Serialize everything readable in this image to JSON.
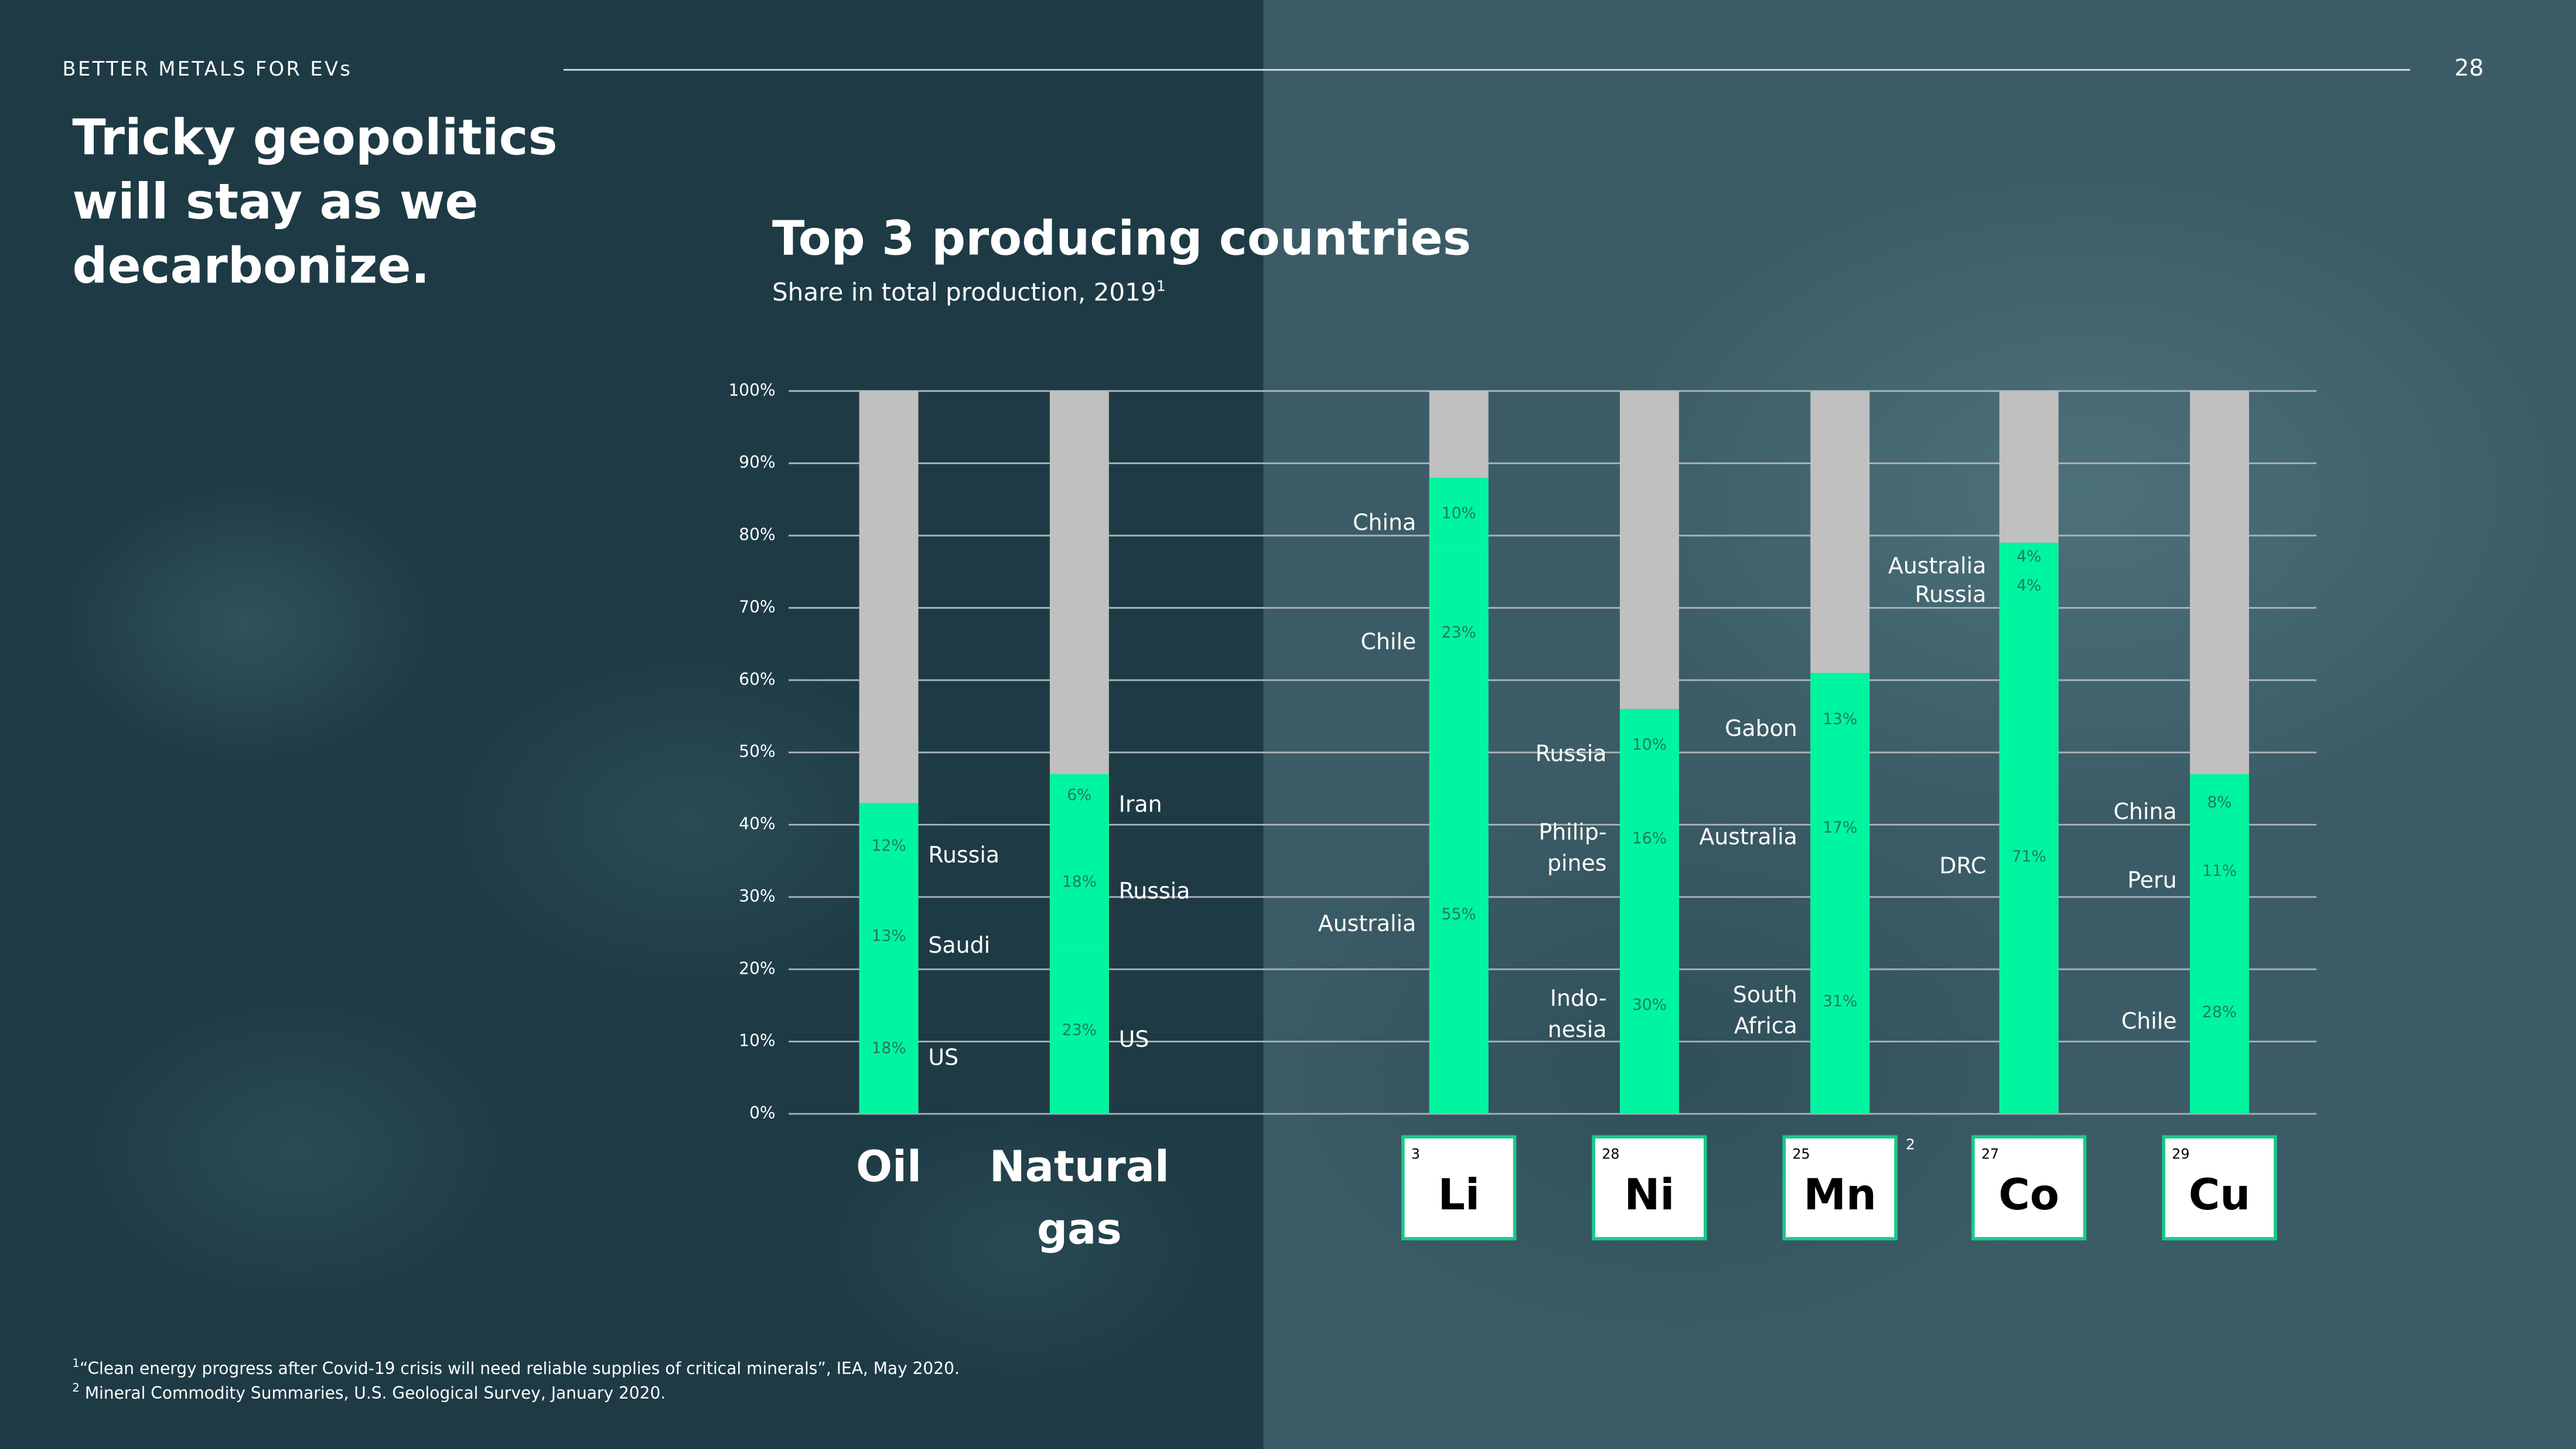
{
  "slide": {
    "section": "BETTER METALS FOR EVs",
    "page": "28",
    "headline": [
      "Tricky geopolitics",
      "will stay as we",
      "decarbonize."
    ],
    "footnotes": [
      {
        "marker": "1",
        "text": "“Clean energy progress after Covid-19 crisis will need reliable supplies of critical minerals”, IEA, May 2020."
      },
      {
        "marker": "2",
        "text": "Mineral Commodity Summaries, U.S. Geological Survey, January 2020."
      }
    ]
  },
  "chart_data": {
    "type": "stacked_bar",
    "title": "Top 3 producing countries",
    "subtitle": "Share in total production, 2019",
    "subtitle_note": "1",
    "color": "#00f5a0",
    "track_color": "#c0c0c0",
    "ylim": [
      0,
      100
    ],
    "yticks": [
      {
        "value": 0,
        "label": "0%"
      },
      {
        "value": 10,
        "label": "10%"
      },
      {
        "value": 20,
        "label": "20%"
      },
      {
        "value": 30,
        "label": "30%"
      },
      {
        "value": 40,
        "label": "40%"
      },
      {
        "value": 50,
        "label": "50%"
      },
      {
        "value": 60,
        "label": "60%"
      },
      {
        "value": 70,
        "label": "70%"
      },
      {
        "value": 80,
        "label": "80%"
      },
      {
        "value": 90,
        "label": "90%"
      },
      {
        "value": 100,
        "label": "100%"
      }
    ],
    "grid": true,
    "categories": [
      "Oil",
      "Natural gas",
      "Li",
      "Ni",
      "Mn",
      "Co",
      "Cu"
    ],
    "element_numbers": [
      null,
      null,
      3,
      28,
      25,
      27,
      29
    ],
    "category_notes": [
      null,
      null,
      null,
      null,
      "2",
      null,
      null
    ],
    "stacks": [
      {
        "values": [
          18,
          13,
          12
        ],
        "value_labels": [
          "18%",
          "13%",
          "12%"
        ],
        "countries": [
          [
            "US"
          ],
          [
            "Saudi"
          ],
          [
            "Russia"
          ]
        ]
      },
      {
        "values": [
          23,
          18,
          6
        ],
        "value_labels": [
          "23%",
          "18%",
          "6%"
        ],
        "countries": [
          [
            "US"
          ],
          [
            "Russia"
          ],
          [
            "Iran"
          ]
        ]
      },
      {
        "values": [
          55,
          23,
          10
        ],
        "value_labels": [
          "55%",
          "23%",
          "10%"
        ],
        "countries": [
          [
            "Australia"
          ],
          [
            "Chile"
          ],
          [
            "China"
          ]
        ]
      },
      {
        "values": [
          30,
          16,
          10
        ],
        "value_labels": [
          "30%",
          "16%",
          "10%"
        ],
        "countries": [
          [
            "Indo-",
            "nesia"
          ],
          [
            "Philip-",
            "pines"
          ],
          [
            "Russia"
          ]
        ]
      },
      {
        "values": [
          31,
          17,
          13
        ],
        "value_labels": [
          "31%",
          "17%",
          "13%"
        ],
        "countries": [
          [
            "South",
            "Africa"
          ],
          [
            "Australia"
          ],
          [
            "Gabon"
          ]
        ]
      },
      {
        "values": [
          71,
          4,
          4
        ],
        "value_labels": [
          "71%",
          "4%",
          "4%"
        ],
        "countries": [
          [
            "DRC"
          ],
          [
            "Russia"
          ],
          [
            "Australia"
          ]
        ]
      },
      {
        "values": [
          28,
          11,
          8
        ],
        "value_labels": [
          "28%",
          "11%",
          "8%"
        ],
        "countries": [
          [
            "Chile"
          ],
          [
            "Peru"
          ],
          [
            "China"
          ]
        ]
      }
    ]
  }
}
